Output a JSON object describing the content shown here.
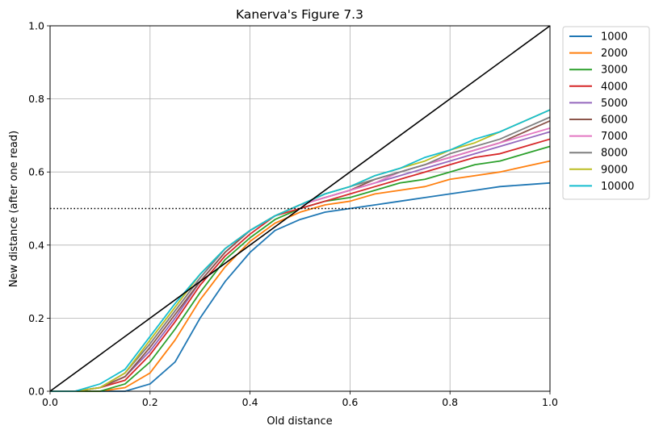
{
  "chart_data": {
    "type": "line",
    "title": "Kanerva's Figure 7.3",
    "xlabel": "Old distance",
    "ylabel": "New distance (after one read)",
    "xlim": [
      0.0,
      1.0
    ],
    "ylim": [
      0.0,
      1.0
    ],
    "xticks": [
      "0.0",
      "0.2",
      "0.4",
      "0.6",
      "0.8",
      "1.0"
    ],
    "yticks": [
      "0.0",
      "0.2",
      "0.4",
      "0.6",
      "0.8",
      "1.0"
    ],
    "grid": true,
    "legend_position": "outside-right",
    "x": [
      0.0,
      0.05,
      0.1,
      0.15,
      0.2,
      0.25,
      0.3,
      0.35,
      0.4,
      0.45,
      0.5,
      0.55,
      0.6,
      0.65,
      0.7,
      0.75,
      0.8,
      0.85,
      0.9,
      0.95,
      1.0
    ],
    "series": [
      {
        "name": "1000",
        "color": "#1f77b4",
        "values": [
          0.0,
          0.0,
          0.0,
          0.0,
          0.02,
          0.08,
          0.2,
          0.3,
          0.38,
          0.44,
          0.47,
          0.49,
          0.5,
          0.51,
          0.52,
          0.53,
          0.54,
          0.55,
          0.56,
          0.565,
          0.57
        ]
      },
      {
        "name": "2000",
        "color": "#ff7f0e",
        "values": [
          0.0,
          0.0,
          0.0,
          0.01,
          0.05,
          0.14,
          0.25,
          0.34,
          0.41,
          0.46,
          0.49,
          0.51,
          0.52,
          0.54,
          0.55,
          0.56,
          0.58,
          0.59,
          0.6,
          0.615,
          0.63
        ]
      },
      {
        "name": "3000",
        "color": "#2ca02c",
        "values": [
          0.0,
          0.0,
          0.0,
          0.02,
          0.08,
          0.17,
          0.27,
          0.36,
          0.42,
          0.47,
          0.5,
          0.52,
          0.53,
          0.55,
          0.57,
          0.58,
          0.6,
          0.62,
          0.63,
          0.65,
          0.67
        ]
      },
      {
        "name": "4000",
        "color": "#d62728",
        "values": [
          0.0,
          0.0,
          0.01,
          0.03,
          0.1,
          0.19,
          0.29,
          0.37,
          0.43,
          0.48,
          0.5,
          0.52,
          0.54,
          0.56,
          0.58,
          0.6,
          0.62,
          0.64,
          0.65,
          0.67,
          0.69
        ]
      },
      {
        "name": "5000",
        "color": "#9467bd",
        "values": [
          0.0,
          0.0,
          0.01,
          0.04,
          0.11,
          0.2,
          0.3,
          0.38,
          0.44,
          0.48,
          0.51,
          0.53,
          0.55,
          0.57,
          0.59,
          0.61,
          0.63,
          0.65,
          0.67,
          0.69,
          0.71
        ]
      },
      {
        "name": "6000",
        "color": "#8c564b",
        "values": [
          0.0,
          0.0,
          0.01,
          0.04,
          0.12,
          0.21,
          0.3,
          0.38,
          0.44,
          0.48,
          0.51,
          0.53,
          0.55,
          0.58,
          0.6,
          0.62,
          0.64,
          0.66,
          0.68,
          0.71,
          0.74
        ]
      },
      {
        "name": "7000",
        "color": "#e377c2",
        "values": [
          0.0,
          0.0,
          0.01,
          0.05,
          0.13,
          0.22,
          0.31,
          0.39,
          0.44,
          0.48,
          0.51,
          0.53,
          0.55,
          0.57,
          0.6,
          0.62,
          0.64,
          0.66,
          0.68,
          0.7,
          0.72
        ]
      },
      {
        "name": "8000",
        "color": "#7f7f7f",
        "values": [
          0.0,
          0.0,
          0.01,
          0.05,
          0.13,
          0.22,
          0.31,
          0.39,
          0.44,
          0.48,
          0.51,
          0.54,
          0.56,
          0.58,
          0.6,
          0.62,
          0.65,
          0.67,
          0.69,
          0.72,
          0.75
        ]
      },
      {
        "name": "9000",
        "color": "#bcbd22",
        "values": [
          0.0,
          0.0,
          0.01,
          0.05,
          0.14,
          0.23,
          0.32,
          0.39,
          0.44,
          0.48,
          0.51,
          0.54,
          0.56,
          0.59,
          0.61,
          0.63,
          0.66,
          0.68,
          0.71,
          0.74,
          0.77
        ]
      },
      {
        "name": "10000",
        "color": "#17becf",
        "values": [
          0.0,
          0.0,
          0.02,
          0.06,
          0.15,
          0.24,
          0.32,
          0.39,
          0.44,
          0.48,
          0.51,
          0.54,
          0.56,
          0.59,
          0.61,
          0.64,
          0.66,
          0.69,
          0.71,
          0.74,
          0.77
        ]
      }
    ],
    "reference_lines": [
      {
        "kind": "diagonal",
        "color": "#000000",
        "style": "solid",
        "from": [
          0.0,
          0.0
        ],
        "to": [
          1.0,
          1.0
        ]
      },
      {
        "kind": "horizontal",
        "color": "#000000",
        "style": "dotted",
        "y": 0.5
      }
    ]
  }
}
